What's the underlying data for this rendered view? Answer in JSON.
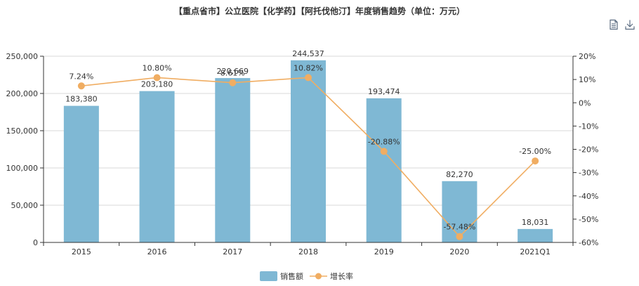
{
  "chart_data": {
    "type": "bar",
    "title": "【重点省市】公立医院【化学药】【阿托伐他汀】年度销售趋势（单位：万元）",
    "categories": [
      "2015",
      "2016",
      "2017",
      "2018",
      "2019",
      "2020",
      "2021Q1"
    ],
    "series": [
      {
        "name": "销售额",
        "type": "bar",
        "axis": "left",
        "color": "#7fb8d4",
        "values": [
          183380,
          203180,
          220669,
          244537,
          193474,
          82270,
          18031
        ],
        "labels": [
          "183,380",
          "203,180",
          "220,669",
          "244,537",
          "193,474",
          "82,270",
          "18,031"
        ]
      },
      {
        "name": "增长率",
        "type": "line",
        "axis": "right",
        "color": "#f0ad62",
        "values": [
          7.24,
          10.8,
          8.61,
          10.82,
          -20.88,
          -57.48,
          -25.0
        ],
        "labels": [
          "7.24%",
          "10.80%",
          "8.61%",
          "10.82%",
          "-20.88%",
          "-57.48%",
          "-25.00%"
        ]
      }
    ],
    "y_left": {
      "ylim": [
        0,
        250000
      ],
      "ticks": [
        0,
        50000,
        100000,
        150000,
        200000,
        250000
      ],
      "tick_labels": [
        "0",
        "50,000",
        "100,000",
        "150,000",
        "200,000",
        "250,000"
      ]
    },
    "y_right": {
      "ylim": [
        -60,
        20
      ],
      "ticks": [
        -60,
        -50,
        -40,
        -30,
        -20,
        -10,
        0,
        10,
        20
      ],
      "tick_labels": [
        "-60%",
        "-50%",
        "-40%",
        "-30%",
        "-20%",
        "-10%",
        "0%",
        "10%",
        "20%"
      ]
    },
    "grid": true,
    "legend_position": "bottom-center"
  },
  "toolbar": {
    "icons": [
      "document-icon",
      "download-icon"
    ]
  }
}
